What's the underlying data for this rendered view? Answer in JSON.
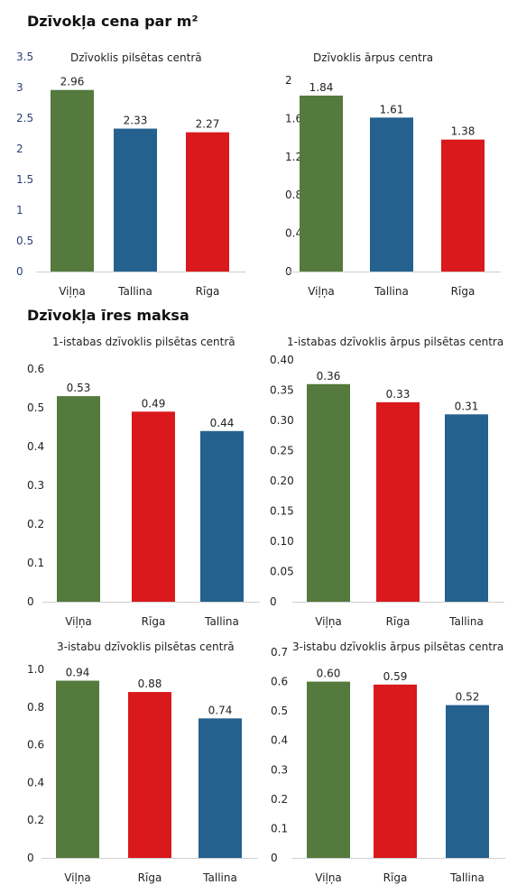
{
  "sections": {
    "price_title": "Dzīvokļa cena par m²",
    "rent_title": "Dzīvokļa īres maksa"
  },
  "colors": {
    "green": "#547a3d",
    "blue": "#24618f",
    "red": "#d9191c",
    "axis": "#cfcfcf"
  },
  "chart_data": [
    {
      "type": "bar",
      "title": "Dzīvoklis pilsētas centrā",
      "categories": [
        "Viļņa",
        "Tallina",
        "Rīga"
      ],
      "values": [
        2.96,
        2.33,
        2.27
      ],
      "value_labels": [
        "2.96",
        "2.33",
        "2.27"
      ],
      "bar_colors": [
        "green",
        "blue",
        "red"
      ],
      "ylim": [
        0,
        3.5
      ],
      "yticks": [
        "0",
        "0.5",
        "1",
        "1.5",
        "2",
        "2.5",
        "3",
        "3.5"
      ],
      "tick_color": "blue",
      "grid": false
    },
    {
      "type": "bar",
      "title": "Dzīvoklis ārpus centra",
      "categories": [
        "Viļņa",
        "Tallina",
        "Rīga"
      ],
      "values": [
        1.84,
        1.61,
        1.38
      ],
      "value_labels": [
        "1.84",
        "1.61",
        "1.38"
      ],
      "bar_colors": [
        "green",
        "blue",
        "red"
      ],
      "ylim": [
        0,
        2
      ],
      "yticks": [
        "0",
        "0.4",
        "0.8",
        "1.2",
        "1.6",
        "2"
      ],
      "tick_color": "dark",
      "grid": false
    },
    {
      "type": "bar",
      "title": "1-istabas dzīvoklis pilsētas centrā",
      "categories": [
        "Viļņa",
        "Rīga",
        "Tallina"
      ],
      "values": [
        0.53,
        0.49,
        0.44
      ],
      "value_labels": [
        "0.53",
        "0.49",
        "0.44"
      ],
      "bar_colors": [
        "green",
        "red",
        "blue"
      ],
      "ylim": [
        0,
        0.6
      ],
      "yticks": [
        "0",
        "0.1",
        "0.2",
        "0.3",
        "0.4",
        "0.5",
        "0.6"
      ],
      "tick_color": "dark",
      "grid": false
    },
    {
      "type": "bar",
      "title": "1-istabas dzīvoklis ārpus pilsētas centra",
      "categories": [
        "Viļņa",
        "Rīga",
        "Tallina"
      ],
      "values": [
        0.36,
        0.33,
        0.31
      ],
      "value_labels": [
        "0.36",
        "0.33",
        "0.31"
      ],
      "bar_colors": [
        "green",
        "red",
        "blue"
      ],
      "ylim": [
        0,
        0.4
      ],
      "yticks": [
        "0",
        "0.05",
        "0.10",
        "0.15",
        "0.20",
        "0.25",
        "0.30",
        "0.35",
        "0.40"
      ],
      "tick_color": "dark",
      "grid": false
    },
    {
      "type": "bar",
      "title": "3-istabu dzīvoklis pilsētas centrā",
      "categories": [
        "Viļņa",
        "Rīga",
        "Tallina"
      ],
      "values": [
        0.94,
        0.88,
        0.74
      ],
      "value_labels": [
        "0.94",
        "0.88",
        "0.74"
      ],
      "bar_colors": [
        "green",
        "red",
        "blue"
      ],
      "ylim": [
        0,
        1.0
      ],
      "yticks": [
        "0",
        "0.2",
        "0.4",
        "0.6",
        "0.8",
        "1.0"
      ],
      "tick_color": "dark",
      "grid": false
    },
    {
      "type": "bar",
      "title": "3-istabu dzīvoklis ārpus pilsētas centra",
      "categories": [
        "Viļņa",
        "Rīga",
        "Tallina"
      ],
      "values": [
        0.6,
        0.59,
        0.52
      ],
      "value_labels": [
        "0.60",
        "0.59",
        "0.52"
      ],
      "bar_colors": [
        "green",
        "red",
        "blue"
      ],
      "ylim": [
        0,
        0.7
      ],
      "yticks": [
        "0",
        "0.1",
        "0.2",
        "0.3",
        "0.4",
        "0.5",
        "0.6",
        "0.7"
      ],
      "tick_color": "dark",
      "grid": false
    }
  ]
}
